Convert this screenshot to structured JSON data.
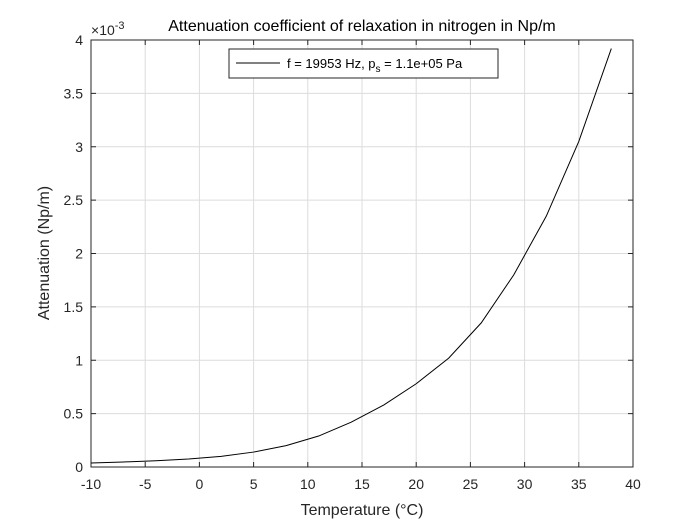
{
  "chart_data": {
    "type": "line",
    "title": "Attenuation coefficient of relaxation in nitrogen in Np/m",
    "xlabel": "Temperature (°C)",
    "ylabel": "Attenuation (Np/m)",
    "xlim": [
      -10,
      40
    ],
    "ylim": [
      0,
      4
    ],
    "xticks": [
      -10,
      -5,
      0,
      5,
      10,
      15,
      20,
      25,
      30,
      35,
      40
    ],
    "yticks": [
      0,
      0.5,
      1,
      1.5,
      2,
      2.5,
      3,
      3.5,
      4
    ],
    "y_exponent_base": "10",
    "y_exponent": "-3",
    "grid": true,
    "legend_position": "top",
    "legend": {
      "main": "f = 19953 Hz, p",
      "sub": "s",
      "rest": " = 1.1e+05 Pa"
    },
    "series": [
      {
        "name": "f = 19953 Hz, ps = 1.1e+05 Pa",
        "color": "#000000",
        "x": [
          -10,
          -7,
          -4,
          -1,
          2,
          5,
          8,
          11,
          14,
          17,
          20,
          23,
          26,
          29,
          32,
          35,
          38
        ],
        "y": [
          0.038,
          0.047,
          0.059,
          0.075,
          0.1,
          0.14,
          0.2,
          0.29,
          0.42,
          0.58,
          0.78,
          1.02,
          1.35,
          1.8,
          2.35,
          3.05,
          3.92
        ]
      }
    ]
  }
}
